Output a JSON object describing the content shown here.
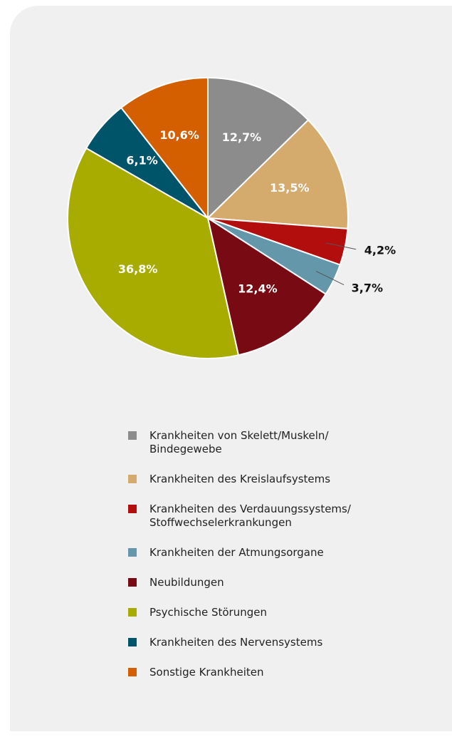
{
  "chart_data": {
    "type": "pie",
    "categories": [
      "Krankheiten von Skelett/Muskeln/\nBindegewebe",
      "Krankheiten des Kreislaufsystems",
      "Krankheiten des Verdauungssystems/\nStoffwechselerkrankungen",
      "Krankheiten der Atmungsorgane",
      "Neubildungen",
      "Psychische Störungen",
      "Krankheiten des Nervensystems",
      "Sonstige Krankheiten"
    ],
    "values": [
      12.7,
      13.5,
      4.2,
      3.7,
      12.4,
      36.8,
      6.1,
      10.6
    ],
    "value_labels": [
      "12,7%",
      "13,5%",
      "4,2%",
      "3,7%",
      "12,4%",
      "36,8%",
      "6,1%",
      "10,6%"
    ],
    "colors": [
      "#8c8c8c",
      "#d5aa6d",
      "#b30e0e",
      "#6497aa",
      "#780a14",
      "#a8ac00",
      "#00546a",
      "#d35f00"
    ]
  }
}
